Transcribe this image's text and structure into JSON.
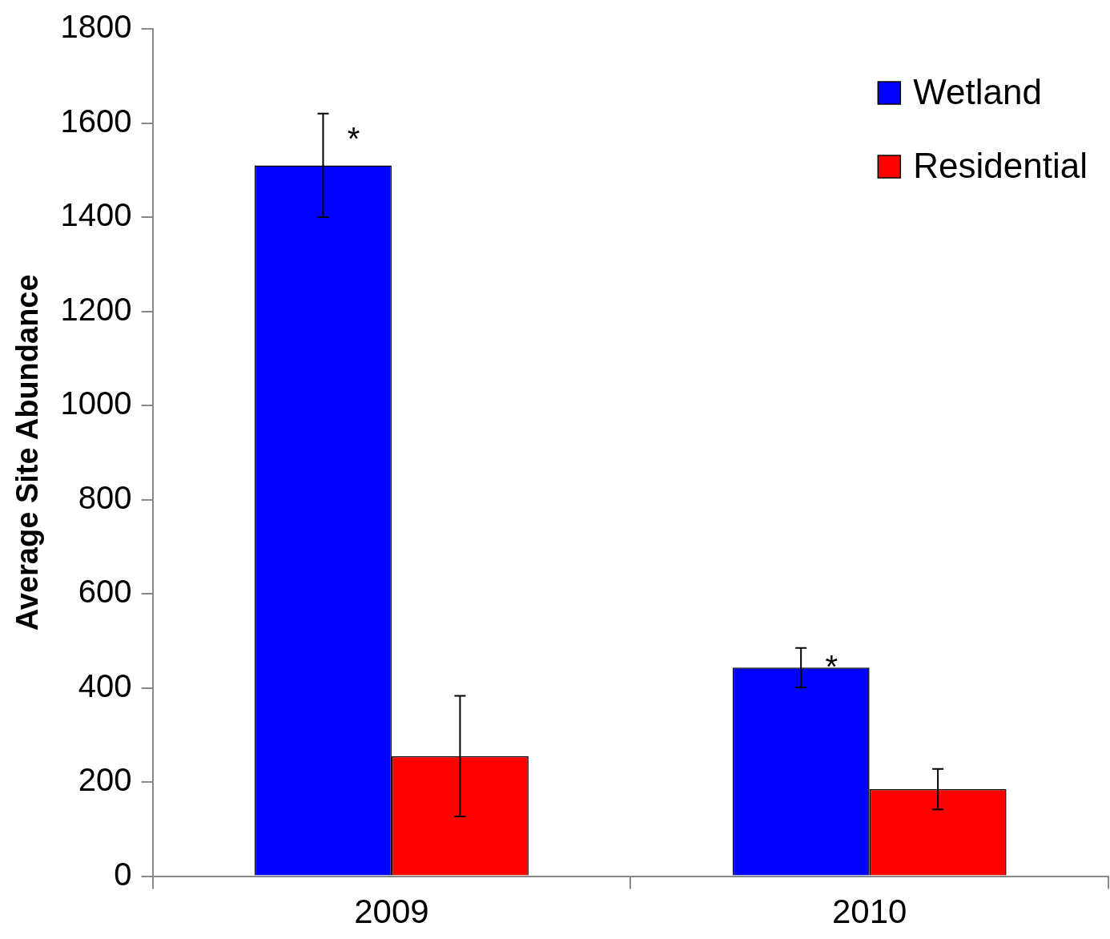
{
  "chart_data": {
    "type": "bar",
    "ylabel": "Average Site Abundance",
    "categories": [
      "2009",
      "2010"
    ],
    "series": [
      {
        "name": "Wetland",
        "color": "#0000ff",
        "values": [
          1510,
          443
        ],
        "errors": [
          110,
          42
        ]
      },
      {
        "name": "Residential",
        "color": "#ff0000",
        "values": [
          255,
          185
        ],
        "errors": [
          128,
          43
        ]
      }
    ],
    "ylim": [
      0,
      1800
    ],
    "yticks": [
      0,
      200,
      400,
      600,
      800,
      1000,
      1200,
      1400,
      1600,
      1800
    ],
    "grid": false,
    "legend": "top right",
    "annotations": [
      "*",
      "*"
    ]
  }
}
